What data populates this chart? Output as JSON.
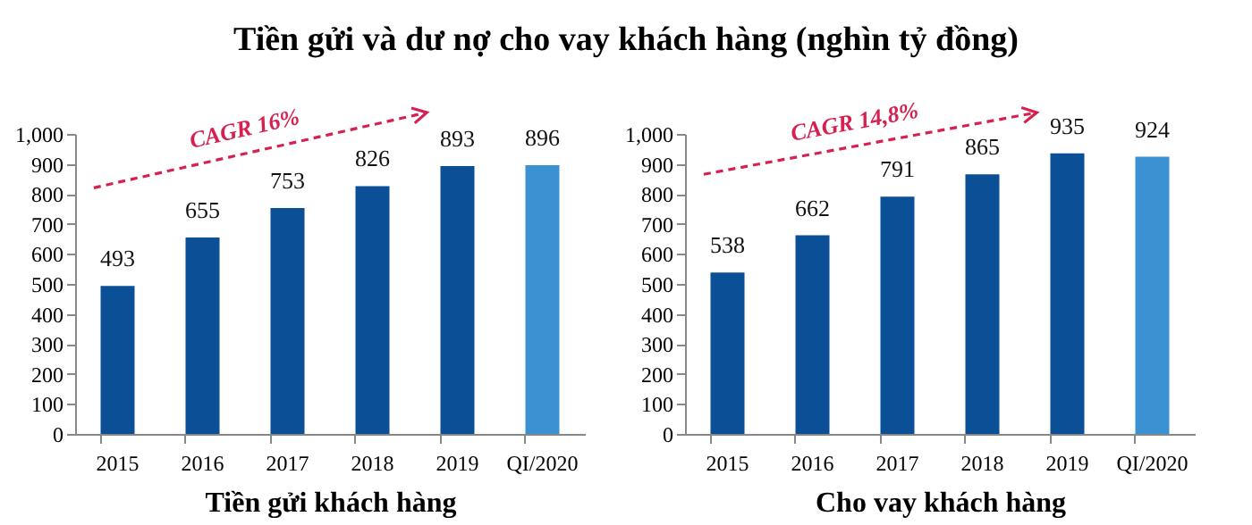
{
  "chart_data": [
    {
      "type": "bar",
      "title": "Tiền gửi và dư nợ cho vay khách hàng (nghìn tỷ đồng)",
      "xlabel": "Tiền gửi khách hàng",
      "categories": [
        "2015",
        "2016",
        "2017",
        "2018",
        "2019",
        "QI/2020"
      ],
      "values": [
        493,
        655,
        753,
        826,
        893,
        896
      ],
      "colors": [
        "#0b4f97",
        "#0b4f97",
        "#0b4f97",
        "#0b4f97",
        "#0b4f97",
        "#3c91d2"
      ],
      "ylim": [
        0,
        1000
      ],
      "yticks": [
        0,
        100,
        200,
        300,
        400,
        500,
        600,
        700,
        800,
        900,
        {
          "value": 1000,
          "label": "1,000"
        }
      ],
      "data_labels": true,
      "annotations": [
        "CAGR 16%"
      ]
    },
    {
      "type": "bar",
      "xlabel": "Cho vay khách hàng",
      "categories": [
        "2015",
        "2016",
        "2017",
        "2018",
        "2019",
        "QI/2020"
      ],
      "values": [
        538,
        662,
        791,
        865,
        935,
        924
      ],
      "colors": [
        "#0b4f97",
        "#0b4f97",
        "#0b4f97",
        "#0b4f97",
        "#0b4f97",
        "#3c91d2"
      ],
      "ylim": [
        0,
        1000
      ],
      "yticks": [
        0,
        100,
        200,
        300,
        400,
        500,
        600,
        700,
        800,
        900,
        {
          "value": 1000,
          "label": "1,000"
        }
      ],
      "data_labels": true,
      "annotations": [
        "CAGR 14,8%"
      ]
    }
  ]
}
